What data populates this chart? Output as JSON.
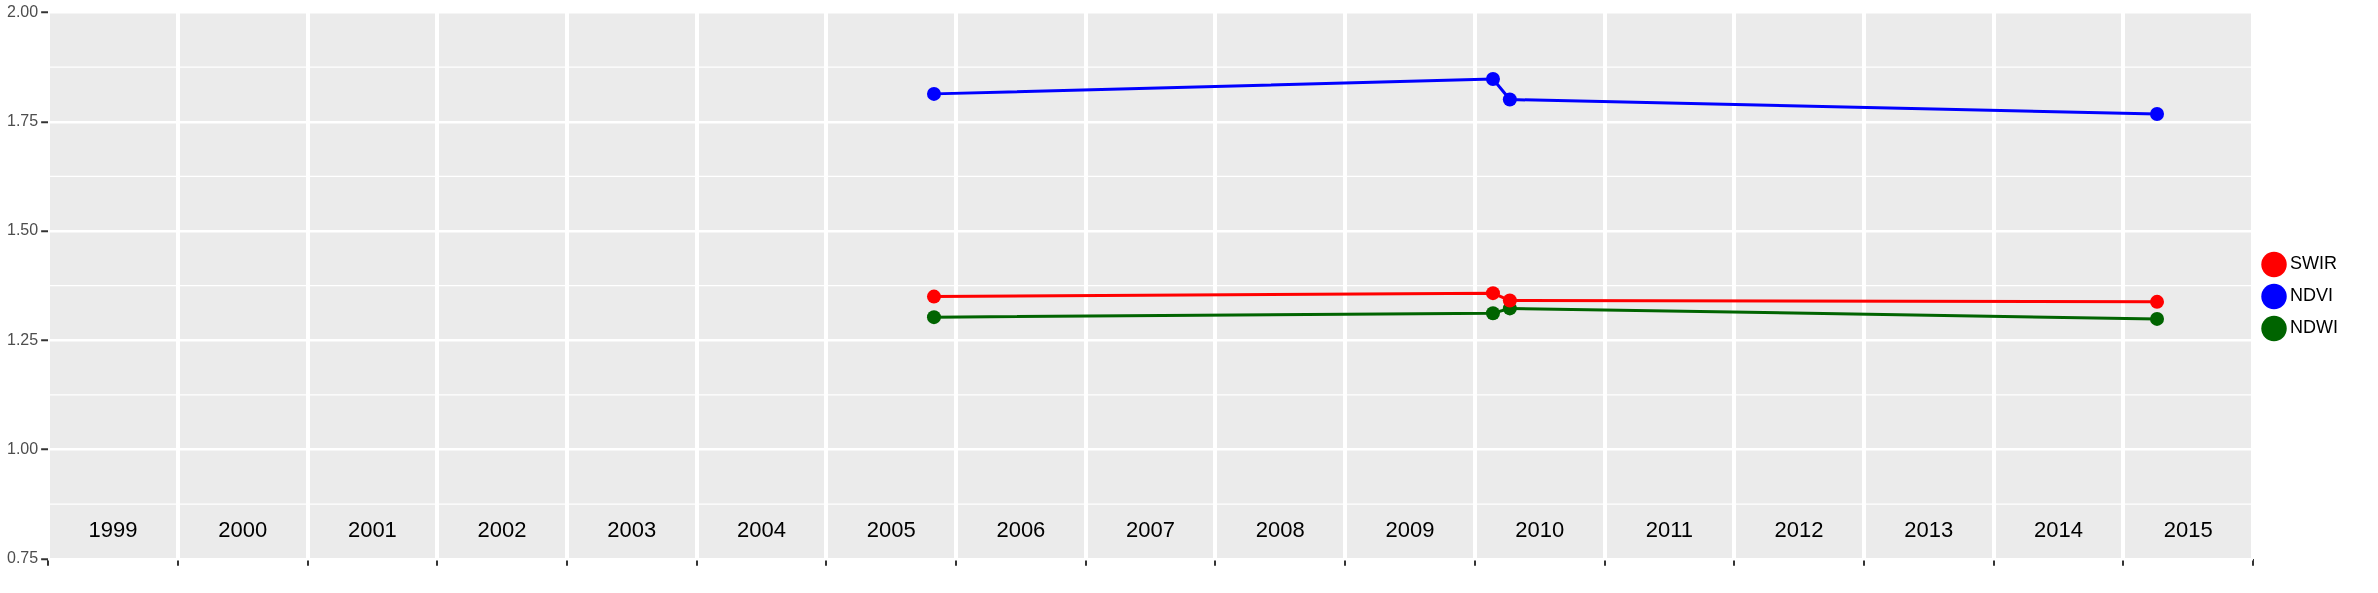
{
  "chart_data": {
    "type": "line",
    "x": [
      2005.83,
      2010.14,
      2010.27,
      2015.26
    ],
    "series": [
      {
        "name": "SWIR",
        "color": "#ff0000",
        "values": [
          1.35,
          1.358,
          1.341,
          1.338
        ]
      },
      {
        "name": "NDVI",
        "color": "#0000ff",
        "values": [
          1.814,
          1.848,
          1.801,
          1.768
        ]
      },
      {
        "name": "NDWI",
        "color": "#006400",
        "values": [
          1.303,
          1.312,
          1.323,
          1.299
        ]
      }
    ],
    "xlim": [
      1999,
      2016
    ],
    "xticks": [
      {
        "value": 1999,
        "label": null
      },
      {
        "value": 2000,
        "label": null
      },
      {
        "value": 2001,
        "label": null
      },
      {
        "value": 2002,
        "label": null
      },
      {
        "value": 2003,
        "label": null
      },
      {
        "value": 2004,
        "label": null
      },
      {
        "value": 2005,
        "label": null
      },
      {
        "value": 2006,
        "label": null
      },
      {
        "value": 2007,
        "label": null
      },
      {
        "value": 2008,
        "label": null
      },
      {
        "value": 2009,
        "label": null
      },
      {
        "value": 2010,
        "label": null
      },
      {
        "value": 2011,
        "label": null
      },
      {
        "value": 2012,
        "label": null
      },
      {
        "value": 2013,
        "label": null
      },
      {
        "value": 2014,
        "label": null
      },
      {
        "value": 2015,
        "label": null
      },
      {
        "value": 2016,
        "label": null
      },
      {
        "value": 1999.5,
        "label": "1999"
      },
      {
        "value": 2000.5,
        "label": "2000"
      },
      {
        "value": 2001.5,
        "label": "2001"
      },
      {
        "value": 2002.5,
        "label": "2002"
      },
      {
        "value": 2003.5,
        "label": "2003"
      },
      {
        "value": 2004.5,
        "label": "2004"
      },
      {
        "value": 2005.5,
        "label": "2005"
      },
      {
        "value": 2006.5,
        "label": "2006"
      },
      {
        "value": 2007.5,
        "label": "2007"
      },
      {
        "value": 2008.5,
        "label": "2008"
      },
      {
        "value": 2009.5,
        "label": "2009"
      },
      {
        "value": 2010.5,
        "label": "2010"
      },
      {
        "value": 2011.5,
        "label": "2011"
      },
      {
        "value": 2012.5,
        "label": "2012"
      },
      {
        "value": 2013.5,
        "label": "2013"
      },
      {
        "value": 2014.5,
        "label": "2014"
      },
      {
        "value": 2015.5,
        "label": "2015"
      }
    ],
    "ylim": [
      0.75,
      2.0
    ],
    "yticks": [
      {
        "value": 0.75,
        "label": "0.75"
      },
      {
        "value": 1.0,
        "label": "1.00"
      },
      {
        "value": 1.25,
        "label": "1.25"
      },
      {
        "value": 1.5,
        "label": "1.50"
      },
      {
        "value": 1.75,
        "label": "1.75"
      },
      {
        "value": 2.0,
        "label": "2.00"
      }
    ],
    "grid": true,
    "legend": "right",
    "marker": "circle",
    "line_style": "solid"
  }
}
